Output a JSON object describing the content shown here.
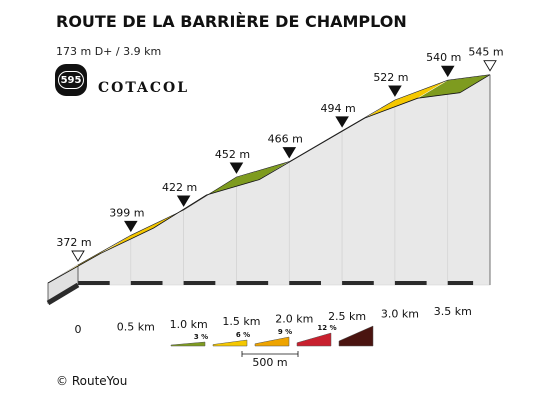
{
  "header": {
    "title": "ROUTE DE LA BARRIÈRE DE CHAMPLON",
    "subtitle": "173 m D+ / 3.9 km",
    "badge_number": "595",
    "brand_name": "COTACOL"
  },
  "footer": {
    "copyright_symbol": "©",
    "copyright_text": "RouteYou"
  },
  "colors": {
    "side_face": "#e8e8e8",
    "front_face": "#e0e0e0",
    "dark_band": "#2b2b2b",
    "text": "#111111"
  },
  "chart_data": {
    "type": "area",
    "style": "3d-elevation-profile",
    "x_unit": "km",
    "y_unit": "m",
    "x_ticks": [
      0,
      0.5,
      1.0,
      1.5,
      2.0,
      2.5,
      3.0,
      3.5
    ],
    "x_tick_labels": [
      "0",
      "0.5 km",
      "1.0 km",
      "1.5 km",
      "2.0 km",
      "2.5 km",
      "3.0 km",
      "3.5 km"
    ],
    "xlim": [
      0,
      3.9
    ],
    "ylim": [
      372,
      545
    ],
    "points": [
      {
        "x": 0.0,
        "y": 372,
        "label": "372 m",
        "marker": "start"
      },
      {
        "x": 0.5,
        "y": 399,
        "label": "399 m",
        "marker": "waypoint"
      },
      {
        "x": 1.0,
        "y": 422,
        "label": "422 m",
        "marker": "waypoint"
      },
      {
        "x": 1.5,
        "y": 452,
        "label": "452 m",
        "marker": "waypoint"
      },
      {
        "x": 2.0,
        "y": 466,
        "label": "466 m",
        "marker": "waypoint"
      },
      {
        "x": 2.5,
        "y": 494,
        "label": "494 m",
        "marker": "waypoint"
      },
      {
        "x": 3.0,
        "y": 522,
        "label": "522 m",
        "marker": "waypoint"
      },
      {
        "x": 3.5,
        "y": 540,
        "label": "540 m",
        "marker": "waypoint"
      },
      {
        "x": 3.9,
        "y": 545,
        "label": "545 m",
        "marker": "end"
      }
    ],
    "segments": [
      {
        "from": 0.0,
        "to": 0.5,
        "gradient_class": "6"
      },
      {
        "from": 0.5,
        "to": 1.0,
        "gradient_class": "6"
      },
      {
        "from": 1.0,
        "to": 1.5,
        "gradient_class": "9"
      },
      {
        "from": 1.5,
        "to": 2.0,
        "gradient_class": "3"
      },
      {
        "from": 2.0,
        "to": 2.5,
        "gradient_class": "6"
      },
      {
        "from": 2.5,
        "to": 3.0,
        "gradient_class": "6"
      },
      {
        "from": 3.0,
        "to": 3.5,
        "gradient_class": "6"
      },
      {
        "from": 3.5,
        "to": 3.9,
        "gradient_class": "3"
      }
    ],
    "legend": {
      "position": "bottom-center",
      "items": [
        {
          "key": "3",
          "label": "3 %",
          "color": "#7e9b1f"
        },
        {
          "key": "6",
          "label": "6 %",
          "color": "#f5c800"
        },
        {
          "key": "9",
          "label": "9 %",
          "color": "#eea400"
        },
        {
          "key": "12",
          "label": "12 %",
          "color": "#c8202e"
        },
        {
          "key": "max",
          "label": "",
          "color": "#4a1410"
        }
      ],
      "scale_label": "500 m"
    }
  }
}
